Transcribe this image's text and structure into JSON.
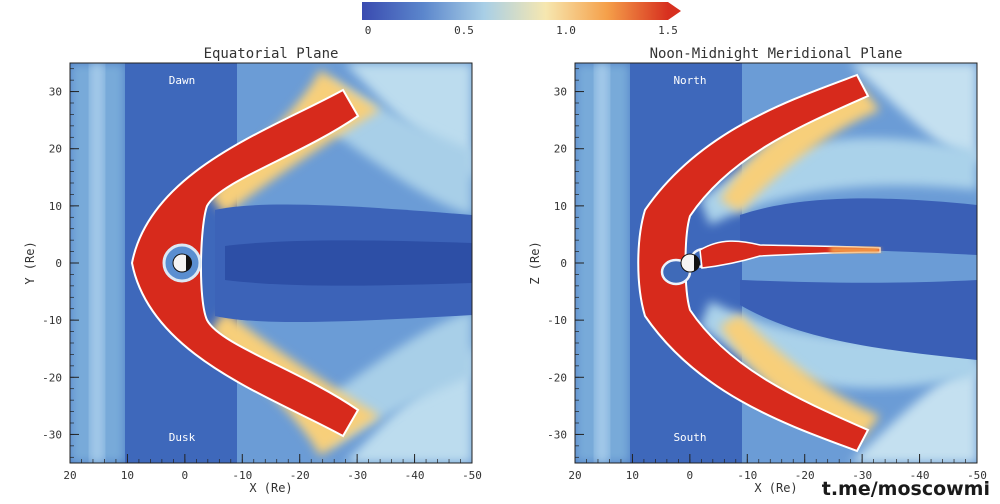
{
  "colorbar": {
    "ticks": [
      "0",
      "0.5",
      "1.0",
      "1.5"
    ],
    "values": [
      0,
      0.5,
      1.0,
      1.5
    ],
    "range": [
      0,
      1.5
    ],
    "colors": [
      "#3a4bb0",
      "#5b86cc",
      "#a9cfe6",
      "#f6e7b0",
      "#f5a04a",
      "#d7301f"
    ]
  },
  "watermark": "t.me/moscowmi",
  "chart_data": [
    {
      "type": "heatmap",
      "title": "Equatorial Plane",
      "xlabel": "X (Re)",
      "ylabel": "Y (Re)",
      "xlim": [
        20,
        -50
      ],
      "ylim": [
        -35,
        35
      ],
      "xticks": [
        20,
        10,
        0,
        -10,
        -20,
        -30,
        -40,
        -50
      ],
      "yticks": [
        30,
        20,
        10,
        0,
        -10,
        -20,
        -30
      ],
      "annotations": [
        {
          "text": "Dawn",
          "x": 0,
          "y": 31
        },
        {
          "text": "Dusk",
          "x": 0,
          "y": -31
        }
      ],
      "features": {
        "bow_shock_nose_x": 8,
        "central_tail_low": true
      }
    },
    {
      "type": "heatmap",
      "title": "Noon-Midnight Meridional Plane",
      "xlabel": "X (Re)",
      "ylabel": "Z (Re)",
      "xlim": [
        20,
        -50
      ],
      "ylim": [
        -35,
        35
      ],
      "xticks": [
        20,
        10,
        0,
        -10,
        -20,
        -30,
        -40,
        -50
      ],
      "yticks": [
        30,
        20,
        10,
        0,
        -10,
        -20,
        -30
      ],
      "annotations": [
        {
          "text": "North",
          "x": 0,
          "y": 31
        },
        {
          "text": "South",
          "x": 0,
          "y": -31
        }
      ],
      "features": {
        "bow_shock_nose_x": 8,
        "plasma_sheet_streak": true
      }
    }
  ]
}
